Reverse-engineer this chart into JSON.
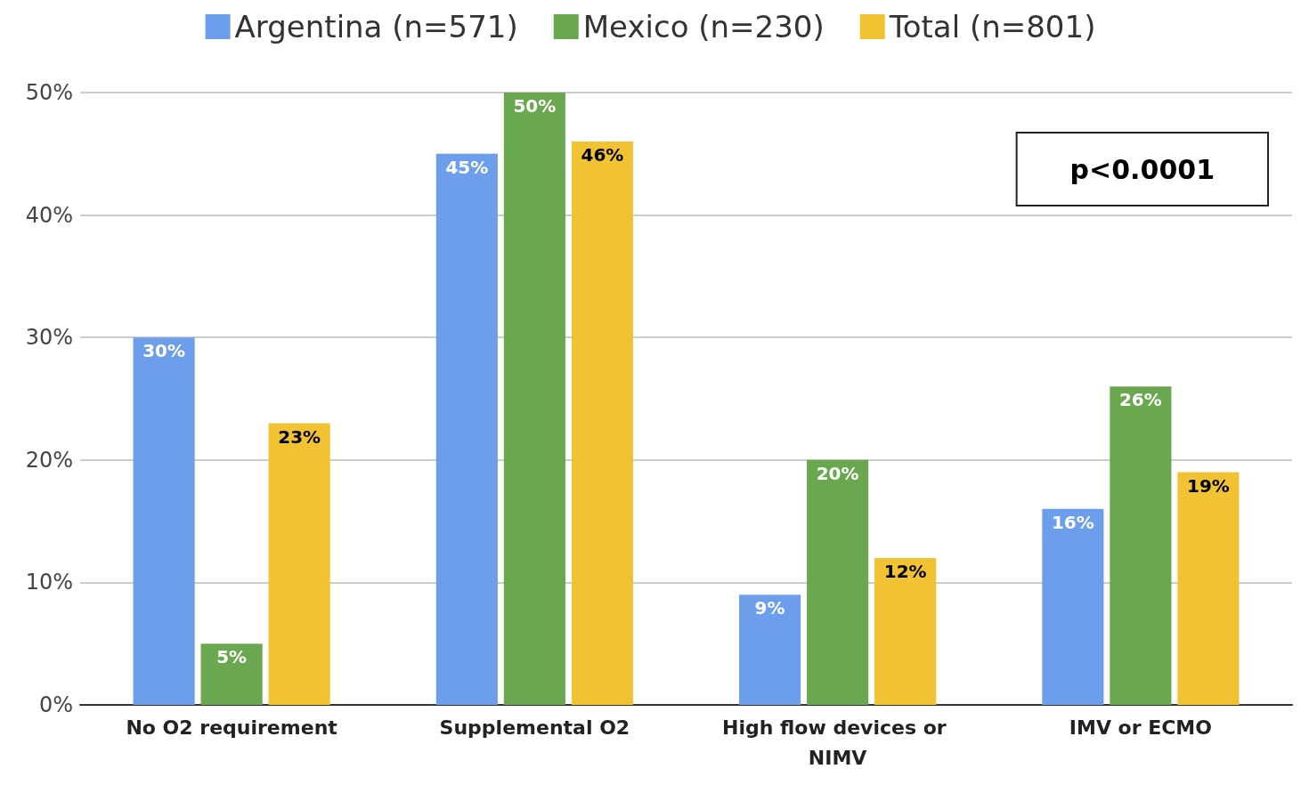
{
  "chart_data": {
    "type": "bar",
    "categories": [
      "No O2 requirement",
      "Supplemental O2",
      "High flow devices or NIMV",
      "IMV or ECMO"
    ],
    "series": [
      {
        "name": "Argentina (n=571)",
        "color": "#6d9eeb",
        "values": [
          30,
          45,
          9,
          16
        ],
        "value_labels": [
          "30%",
          "45%",
          "9%",
          "16%"
        ]
      },
      {
        "name": "Mexico (n=230)",
        "color": "#6aa84f",
        "values": [
          5,
          50,
          20,
          26
        ],
        "value_labels": [
          "5%",
          "50%",
          "20%",
          "26%"
        ]
      },
      {
        "name": "Total (n=801)",
        "color": "#f1c232",
        "values": [
          23,
          46,
          12,
          19
        ],
        "value_labels": [
          "23%",
          "46%",
          "12%",
          "19%"
        ]
      }
    ],
    "ylim": [
      0,
      50
    ],
    "yticks": [
      {
        "value": 0,
        "label": "0%"
      },
      {
        "value": 10,
        "label": "10%"
      },
      {
        "value": 20,
        "label": "20%"
      },
      {
        "value": 30,
        "label": "30%"
      },
      {
        "value": 40,
        "label": "40%"
      },
      {
        "value": 50,
        "label": "50%"
      }
    ],
    "grid": "y",
    "legend": "top",
    "annotations": [
      "p<0.0001"
    ]
  }
}
